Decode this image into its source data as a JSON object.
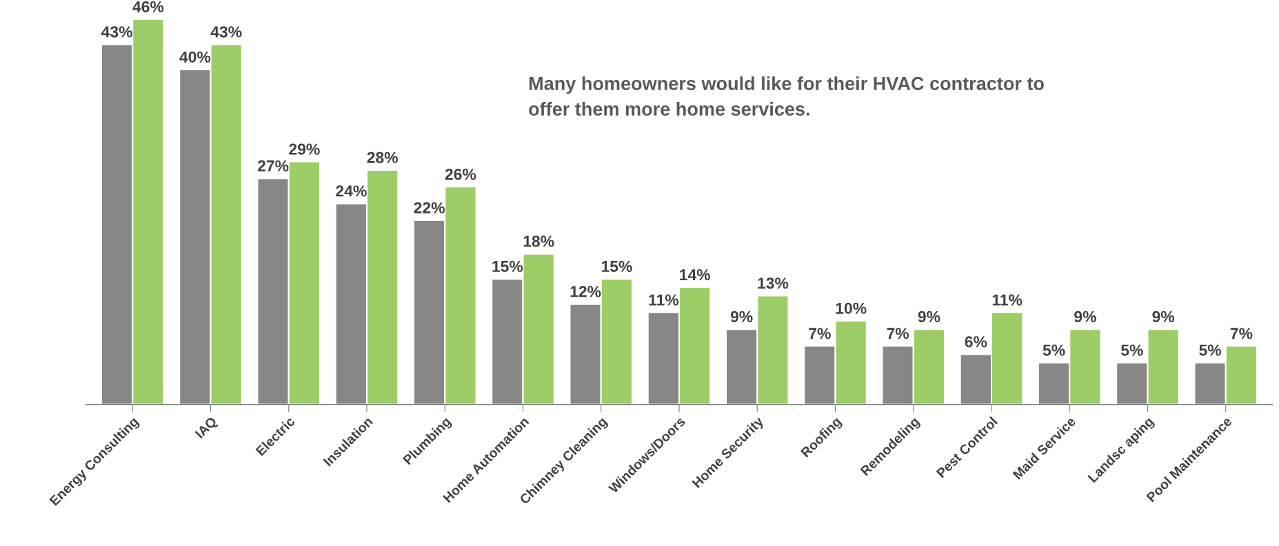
{
  "chart_data": {
    "type": "bar",
    "categories": [
      "Energy Consulting",
      "IAQ",
      "Electric",
      "Insulation",
      "Plumbing",
      "Home Automation",
      "Chimney Cleaning",
      "Windows/Doors",
      "Home Security",
      "Roofing",
      "Remodeling",
      "Pest Control",
      "Maid Service",
      "Landsc aping",
      "Pool Maintenance"
    ],
    "series": [
      {
        "color": "#878787",
        "values": [
          43,
          40,
          27,
          24,
          22,
          15,
          12,
          11,
          9,
          7,
          7,
          6,
          5,
          5,
          5
        ],
        "value_labels": [
          "43%",
          "40%",
          "27%",
          "24%",
          "22%",
          "15%",
          "12%",
          "11%",
          "9%",
          "7%",
          "7%",
          "6%",
          "5%",
          "5%",
          "5%"
        ]
      },
      {
        "color": "#9dcd67",
        "values": [
          46,
          43,
          29,
          28,
          26,
          18,
          15,
          14,
          13,
          10,
          9,
          11,
          9,
          9,
          7
        ],
        "value_labels": [
          "46%",
          "43%",
          "29%",
          "28%",
          "26%",
          "18%",
          "15%",
          "14%",
          "13%",
          "10%",
          "9%",
          "11%",
          "9%",
          "9%",
          "7%"
        ]
      }
    ],
    "tick_labels": "x",
    "annotations": [
      "Many homeowners would like for their HVAC contractor to\noffer them more home services."
    ]
  }
}
